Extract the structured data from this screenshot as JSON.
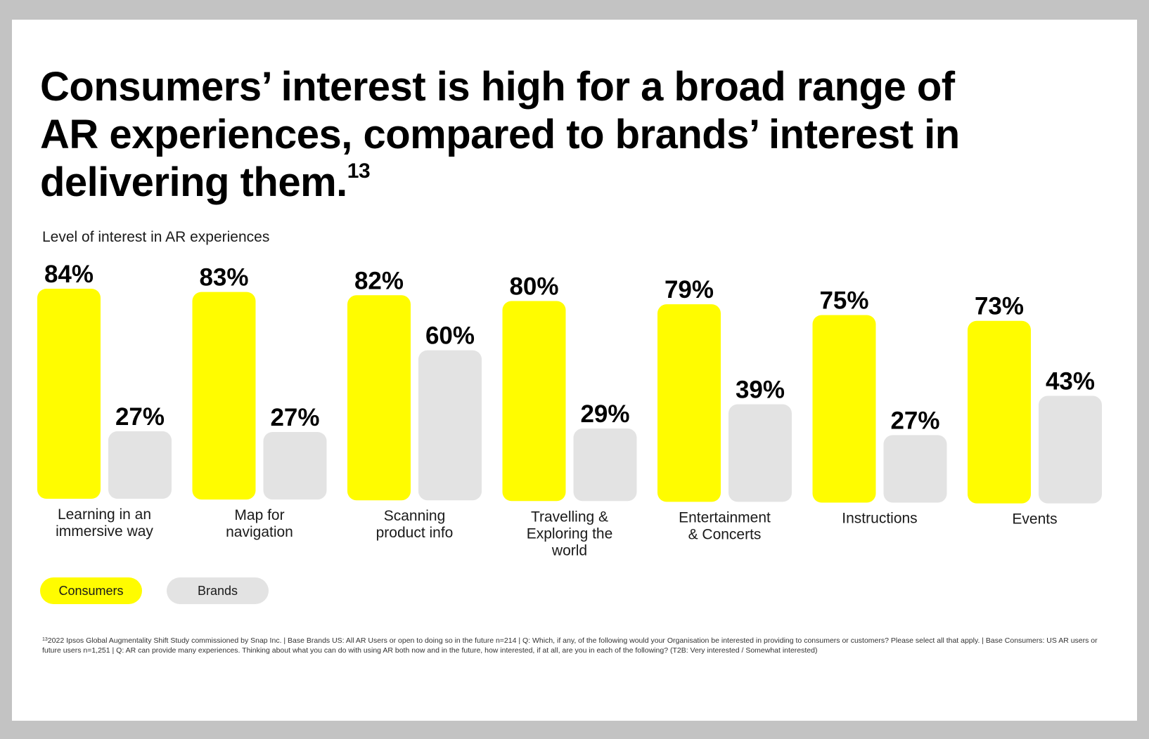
{
  "title": {
    "text": "Consumers’ interest is high for a broad range of AR experiences, compared to brands’ interest in delivering them.",
    "footnote_ref": "13"
  },
  "chart_data": {
    "type": "bar",
    "title": "Level of interest in AR experiences",
    "categories": [
      [
        "Learning in an",
        "immersive way"
      ],
      [
        "Map for",
        "navigation"
      ],
      [
        "Scanning",
        "product info"
      ],
      [
        "Travelling &",
        "Exploring the",
        "world"
      ],
      [
        "Entertainment",
        "& Concerts"
      ],
      [
        "Instructions"
      ],
      [
        "Events"
      ]
    ],
    "series": [
      {
        "name": "Consumers",
        "color": "#fffc00",
        "values": [
          84,
          83,
          82,
          80,
          79,
          75,
          73
        ]
      },
      {
        "name": "Brands",
        "color": "#e3e3e3",
        "values": [
          27,
          27,
          60,
          29,
          39,
          27,
          43
        ]
      }
    ],
    "value_suffix": "%",
    "ylim": [
      0,
      100
    ],
    "grid": false,
    "legend_position": "bottom-left"
  },
  "legend": {
    "consumers": "Consumers",
    "brands": "Brands"
  },
  "footnote": {
    "ref": "13",
    "text": "2022 Ipsos Global Augmentality Shift Study commissioned by Snap Inc. | Base Brands US: All AR Users or open to doing so in the future n=214 | Q: Which, if any, of the following would your Organisation be interested in providing to consumers or customers? Please select all that apply. | Base Consumers: US AR users or future users n=1,251 | Q: AR can provide many experiences. Thinking about what you can do with using AR both now and in the future, how interested, if at all, are you in each of the following? (T2B: Very interested / Somewhat interested)"
  },
  "colors": {
    "consumers": "#fffc00",
    "brands": "#e3e3e3",
    "card": "#ffffff",
    "frame": "#c3c3c3"
  }
}
